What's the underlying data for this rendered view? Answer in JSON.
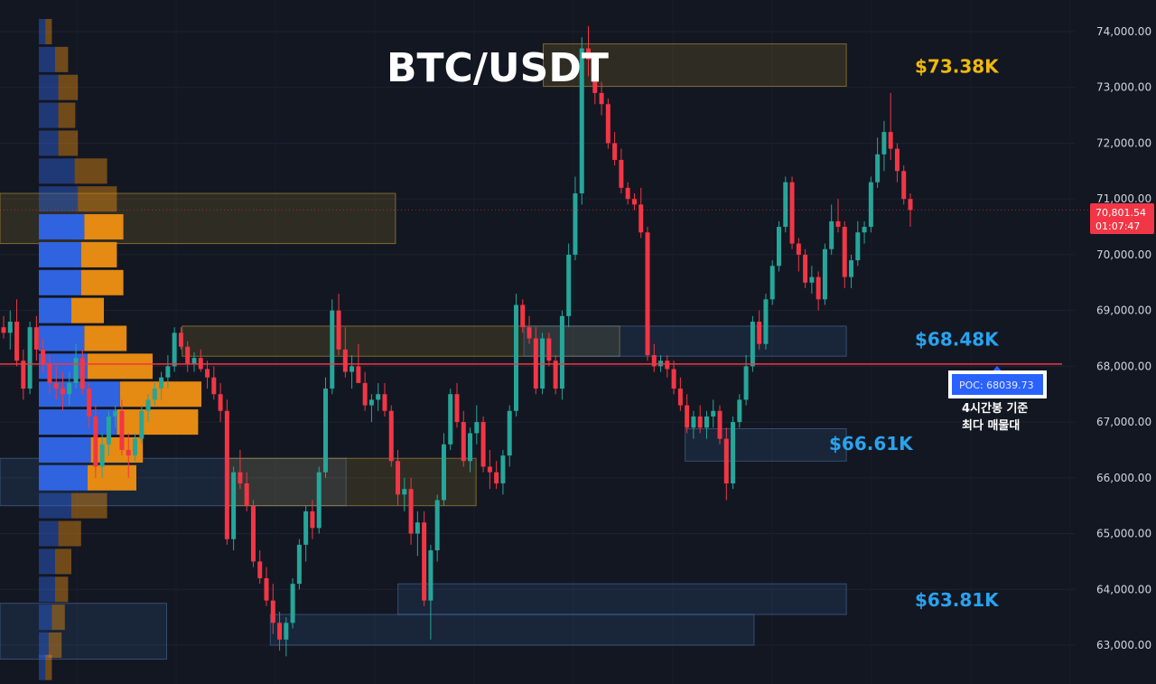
{
  "chart_data": {
    "type": "candlestick",
    "title": "BTC/USDT",
    "ylim": [
      62600,
      74300
    ],
    "y_ticks": [
      63000,
      64000,
      65000,
      66000,
      67000,
      68000,
      69000,
      70000,
      71000,
      72000,
      73000,
      74000
    ],
    "y_tick_labels": [
      "63,000.00",
      "64,000.00",
      "65,000.00",
      "66,000.00",
      "67,000.00",
      "68,000.00",
      "69,000.00",
      "70,000.00",
      "71,000.00",
      "72,000.00",
      "73,000.00",
      "74,000.00"
    ],
    "grid": true,
    "colors": {
      "up": "#26a69a",
      "down": "#f23645",
      "profile_blue": "#2f63e0",
      "profile_orange": "#e58a12",
      "poc_line": "#f23645",
      "level_gold": "#f0b90b",
      "level_blue": "#29a3ef",
      "background": "#131722"
    },
    "current_price": {
      "value": 70801.54,
      "label": "70,801.54",
      "countdown": "01:07:47"
    },
    "poc": {
      "value": 68039.73,
      "label": "POC: 68039.73",
      "note_lines": [
        "4시간봉 기준",
        "최다 매물대"
      ]
    },
    "levels": [
      {
        "label": "$73.38K",
        "value": 73380,
        "color": "#f0b90b"
      },
      {
        "label": "$68.48K",
        "value": 68480,
        "color": "#29a3ef"
      },
      {
        "label": "$66.61K",
        "value": 66610,
        "color": "#29a3ef"
      },
      {
        "label": "$63.81K",
        "value": 63810,
        "color": "#29a3ef"
      }
    ],
    "zones": [
      {
        "top": 73780,
        "bottom": 73020,
        "x0": 0.5055,
        "x1": 0.7875,
        "kind": "supply"
      },
      {
        "top": 71100,
        "bottom": 70200,
        "x0": 0.0,
        "x1": 0.368,
        "kind": "supply"
      },
      {
        "top": 68720,
        "bottom": 68180,
        "x0": 0.1695,
        "x1": 0.5766,
        "kind": "supply"
      },
      {
        "top": 68720,
        "bottom": 68180,
        "x0": 0.4875,
        "x1": 0.7875,
        "kind": "demand"
      },
      {
        "top": 66880,
        "bottom": 66300,
        "x0": 0.6375,
        "x1": 0.7875,
        "kind": "demand"
      },
      {
        "top": 66350,
        "bottom": 65500,
        "x0": 0.0,
        "x1": 0.322,
        "kind": "demand"
      },
      {
        "top": 66350,
        "bottom": 65500,
        "x0": 0.21,
        "x1": 0.443,
        "kind": "supply"
      },
      {
        "top": 64100,
        "bottom": 63550,
        "x0": 0.3703,
        "x1": 0.7875,
        "kind": "demand"
      },
      {
        "top": 63550,
        "bottom": 63000,
        "x0": 0.2515,
        "x1": 0.7016,
        "kind": "demand"
      },
      {
        "top": 63750,
        "bottom": 62750,
        "x0": 0.0,
        "x1": 0.155,
        "kind": "demand"
      }
    ],
    "volume_profile": [
      {
        "price": 74000,
        "buy": 10,
        "sell": 10
      },
      {
        "price": 73500,
        "buy": 25,
        "sell": 20
      },
      {
        "price": 73000,
        "buy": 30,
        "sell": 30
      },
      {
        "price": 72500,
        "buy": 30,
        "sell": 26
      },
      {
        "price": 72000,
        "buy": 30,
        "sell": 30
      },
      {
        "price": 71500,
        "buy": 55,
        "sell": 50
      },
      {
        "price": 71000,
        "buy": 60,
        "sell": 60
      },
      {
        "price": 70500,
        "buy": 70,
        "sell": 60
      },
      {
        "price": 70000,
        "buy": 65,
        "sell": 55
      },
      {
        "price": 69500,
        "buy": 65,
        "sell": 65
      },
      {
        "price": 69000,
        "buy": 50,
        "sell": 50
      },
      {
        "price": 68500,
        "buy": 70,
        "sell": 65
      },
      {
        "price": 68000,
        "buy": 75,
        "sell": 100
      },
      {
        "price": 67500,
        "buy": 125,
        "sell": 125
      },
      {
        "price": 67000,
        "buy": 120,
        "sell": 125
      },
      {
        "price": 66500,
        "buy": 80,
        "sell": 80
      },
      {
        "price": 66000,
        "buy": 75,
        "sell": 75
      },
      {
        "price": 65500,
        "buy": 50,
        "sell": 55
      },
      {
        "price": 65000,
        "buy": 30,
        "sell": 35
      },
      {
        "price": 64500,
        "buy": 25,
        "sell": 25
      },
      {
        "price": 64000,
        "buy": 25,
        "sell": 20
      },
      {
        "price": 63500,
        "buy": 20,
        "sell": 20
      },
      {
        "price": 63000,
        "buy": 15,
        "sell": 20
      },
      {
        "price": 62600,
        "buy": 10,
        "sell": 10
      }
    ],
    "candles_note": "approximate 4h OHLC estimated from the chart, oldest to newest",
    "candles": [
      [
        68700,
        68900,
        68500,
        68600
      ],
      [
        68600,
        69000,
        68300,
        68800
      ],
      [
        68800,
        69200,
        68000,
        68100
      ],
      [
        68100,
        68300,
        67400,
        67600
      ],
      [
        67600,
        68800,
        67500,
        68700
      ],
      [
        68700,
        68900,
        68100,
        68300
      ],
      [
        68300,
        68500,
        67900,
        68050
      ],
      [
        68050,
        68200,
        67500,
        67700
      ],
      [
        67700,
        68000,
        67400,
        67600
      ],
      [
        67600,
        67900,
        67200,
        67500
      ],
      [
        67500,
        67900,
        67300,
        67700
      ],
      [
        67700,
        68400,
        67600,
        68150
      ],
      [
        68150,
        68300,
        67500,
        67600
      ],
      [
        67600,
        67700,
        66900,
        67100
      ],
      [
        67100,
        67300,
        66000,
        66200
      ],
      [
        66200,
        66800,
        66000,
        66600
      ],
      [
        66600,
        67200,
        66400,
        67100
      ],
      [
        67100,
        67300,
        66900,
        67200
      ],
      [
        67200,
        67400,
        66400,
        66500
      ],
      [
        66500,
        66800,
        66000,
        66400
      ],
      [
        66400,
        66800,
        66300,
        66700
      ],
      [
        66700,
        67300,
        66600,
        67200
      ],
      [
        67200,
        67500,
        67000,
        67400
      ],
      [
        67400,
        67700,
        67300,
        67600
      ],
      [
        67600,
        67900,
        67400,
        67800
      ],
      [
        67800,
        68200,
        67600,
        68000
      ],
      [
        68000,
        68700,
        67900,
        68600
      ],
      [
        68600,
        68700,
        68300,
        68350
      ],
      [
        68350,
        68450,
        67900,
        68050
      ],
      [
        68050,
        68250,
        67900,
        68150
      ],
      [
        68150,
        68300,
        67900,
        67950
      ],
      [
        67950,
        68100,
        67600,
        67800
      ],
      [
        67800,
        68000,
        67400,
        67500
      ],
      [
        67500,
        67700,
        67000,
        67200
      ],
      [
        67200,
        67400,
        64800,
        64900
      ],
      [
        64900,
        66200,
        64700,
        66100
      ],
      [
        66100,
        66500,
        65800,
        65900
      ],
      [
        65900,
        66100,
        65400,
        65500
      ],
      [
        65500,
        65600,
        64400,
        64500
      ],
      [
        64500,
        64700,
        64100,
        64200
      ],
      [
        64200,
        64400,
        63700,
        63800
      ],
      [
        63800,
        64100,
        63200,
        63400
      ],
      [
        63400,
        63600,
        62900,
        63100
      ],
      [
        63100,
        63500,
        62800,
        63400
      ],
      [
        63400,
        64200,
        63300,
        64100
      ],
      [
        64100,
        64900,
        64000,
        64800
      ],
      [
        64800,
        65500,
        64500,
        65400
      ],
      [
        65400,
        65600,
        64900,
        65100
      ],
      [
        65100,
        66200,
        65000,
        66100
      ],
      [
        66100,
        67800,
        66000,
        67600
      ],
      [
        67600,
        69200,
        67500,
        69000
      ],
      [
        69000,
        69300,
        68200,
        68300
      ],
      [
        68300,
        68700,
        67800,
        67900
      ],
      [
        67900,
        68200,
        67600,
        68000
      ],
      [
        68000,
        68400,
        67700,
        67700
      ],
      [
        67700,
        67900,
        67200,
        67300
      ],
      [
        67300,
        67500,
        67000,
        67400
      ],
      [
        67400,
        67700,
        67200,
        67500
      ],
      [
        67500,
        67700,
        67100,
        67200
      ],
      [
        67200,
        67300,
        66200,
        66300
      ],
      [
        66300,
        66500,
        65500,
        65700
      ],
      [
        65700,
        66000,
        65400,
        65800
      ],
      [
        65800,
        66000,
        64800,
        65000
      ],
      [
        65000,
        65400,
        64600,
        65200
      ],
      [
        65200,
        65400,
        63700,
        63800
      ],
      [
        63800,
        64800,
        63100,
        64700
      ],
      [
        64700,
        65700,
        64500,
        65600
      ],
      [
        65600,
        66800,
        65500,
        66600
      ],
      [
        66600,
        67600,
        66500,
        67500
      ],
      [
        67500,
        67700,
        66900,
        67000
      ],
      [
        67000,
        67200,
        66200,
        66300
      ],
      [
        66300,
        66900,
        66100,
        66800
      ],
      [
        66800,
        67300,
        66600,
        67000
      ],
      [
        67000,
        67100,
        66100,
        66200
      ],
      [
        66200,
        66500,
        65800,
        66100
      ],
      [
        66100,
        66300,
        65800,
        65900
      ],
      [
        65900,
        66500,
        65700,
        66400
      ],
      [
        66400,
        67300,
        66200,
        67200
      ],
      [
        67200,
        69300,
        67100,
        69100
      ],
      [
        69100,
        69200,
        68600,
        68700
      ],
      [
        68700,
        68900,
        68400,
        68500
      ],
      [
        68500,
        68700,
        67500,
        67600
      ],
      [
        67600,
        68600,
        67500,
        68500
      ],
      [
        68500,
        68600,
        68000,
        68100
      ],
      [
        68100,
        68200,
        67500,
        67600
      ],
      [
        67600,
        69000,
        67400,
        68900
      ],
      [
        68900,
        70200,
        68700,
        70000
      ],
      [
        70000,
        71400,
        69900,
        71100
      ],
      [
        71100,
        73900,
        70900,
        73700
      ],
      [
        73700,
        74100,
        73200,
        73500
      ],
      [
        73500,
        73600,
        72700,
        72900
      ],
      [
        72900,
        73100,
        72500,
        72700
      ],
      [
        72700,
        72800,
        71900,
        72000
      ],
      [
        72000,
        72200,
        71600,
        71700
      ],
      [
        71700,
        71900,
        71100,
        71200
      ],
      [
        71200,
        71300,
        70900,
        71000
      ],
      [
        71000,
        71100,
        70800,
        70900
      ],
      [
        70900,
        71200,
        70300,
        70400
      ],
      [
        70400,
        70500,
        68100,
        68200
      ],
      [
        68200,
        68400,
        67900,
        68000
      ],
      [
        68000,
        68200,
        67900,
        68100
      ],
      [
        68100,
        68200,
        67800,
        67950
      ],
      [
        67950,
        68100,
        67500,
        67600
      ],
      [
        67600,
        67800,
        67200,
        67300
      ],
      [
        67300,
        67500,
        66800,
        66900
      ],
      [
        66900,
        67200,
        66700,
        67100
      ],
      [
        67100,
        67300,
        66800,
        66900
      ],
      [
        66900,
        67200,
        66700,
        67100
      ],
      [
        67100,
        67400,
        66900,
        67200
      ],
      [
        67200,
        67300,
        66600,
        66700
      ],
      [
        66700,
        66900,
        65600,
        65900
      ],
      [
        65900,
        67100,
        65800,
        67000
      ],
      [
        67000,
        67500,
        66900,
        67400
      ],
      [
        67400,
        68200,
        67300,
        68000
      ],
      [
        68000,
        68900,
        67900,
        68800
      ],
      [
        68800,
        69000,
        68300,
        68400
      ],
      [
        68400,
        69300,
        68300,
        69200
      ],
      [
        69200,
        69900,
        69100,
        69800
      ],
      [
        69800,
        70600,
        69700,
        70500
      ],
      [
        70500,
        71400,
        70400,
        71300
      ],
      [
        71300,
        71400,
        70100,
        70200
      ],
      [
        70200,
        70300,
        69700,
        70000
      ],
      [
        70000,
        70100,
        69400,
        69500
      ],
      [
        69500,
        69800,
        69300,
        69600
      ],
      [
        69600,
        69700,
        69000,
        69200
      ],
      [
        69200,
        70200,
        69100,
        70100
      ],
      [
        70100,
        70900,
        70000,
        70600
      ],
      [
        70600,
        71000,
        70400,
        70500
      ],
      [
        70500,
        70600,
        69400,
        69600
      ],
      [
        69600,
        70000,
        69400,
        69900
      ],
      [
        69900,
        70600,
        69800,
        70400
      ],
      [
        70400,
        70600,
        70200,
        70500
      ],
      [
        70500,
        71400,
        70400,
        71300
      ],
      [
        71300,
        72100,
        71200,
        71800
      ],
      [
        71800,
        72400,
        71500,
        72200
      ],
      [
        72200,
        72900,
        71700,
        71900
      ],
      [
        71900,
        72000,
        71300,
        71500
      ],
      [
        71500,
        71600,
        70900,
        71000
      ],
      [
        71000,
        71100,
        70500,
        70801.54
      ]
    ]
  }
}
